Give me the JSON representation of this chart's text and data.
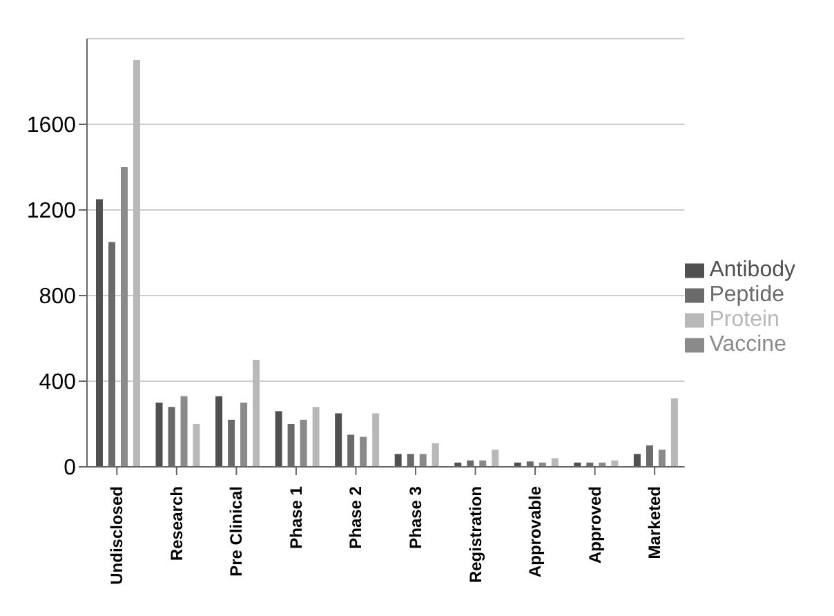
{
  "chart_data": {
    "type": "bar",
    "categories": [
      "Undisclosed",
      "Research",
      "Pre Clinical",
      "Phase 1",
      "Phase 2",
      "Phase 3",
      "Registration",
      "Approvable",
      "Approved",
      "Marketed"
    ],
    "series": [
      {
        "name": "Antibody",
        "color": "#505050",
        "values": [
          1250,
          300,
          330,
          260,
          250,
          60,
          20,
          20,
          20,
          60
        ]
      },
      {
        "name": "Peptide",
        "color": "#6a6a6a",
        "values": [
          1050,
          280,
          220,
          200,
          150,
          60,
          30,
          25,
          20,
          100
        ]
      },
      {
        "name": "Vaccine",
        "color": "#8a8a8a",
        "values": [
          1400,
          330,
          300,
          220,
          140,
          60,
          30,
          20,
          20,
          80
        ]
      },
      {
        "name": "Protein",
        "color": "#b8b8b8",
        "values": [
          1900,
          200,
          500,
          280,
          250,
          110,
          80,
          40,
          30,
          320
        ]
      }
    ],
    "ylim": [
      0,
      2000
    ],
    "yticks": [
      0,
      400,
      800,
      1200,
      1600
    ],
    "grid": "y",
    "legend": "right"
  }
}
